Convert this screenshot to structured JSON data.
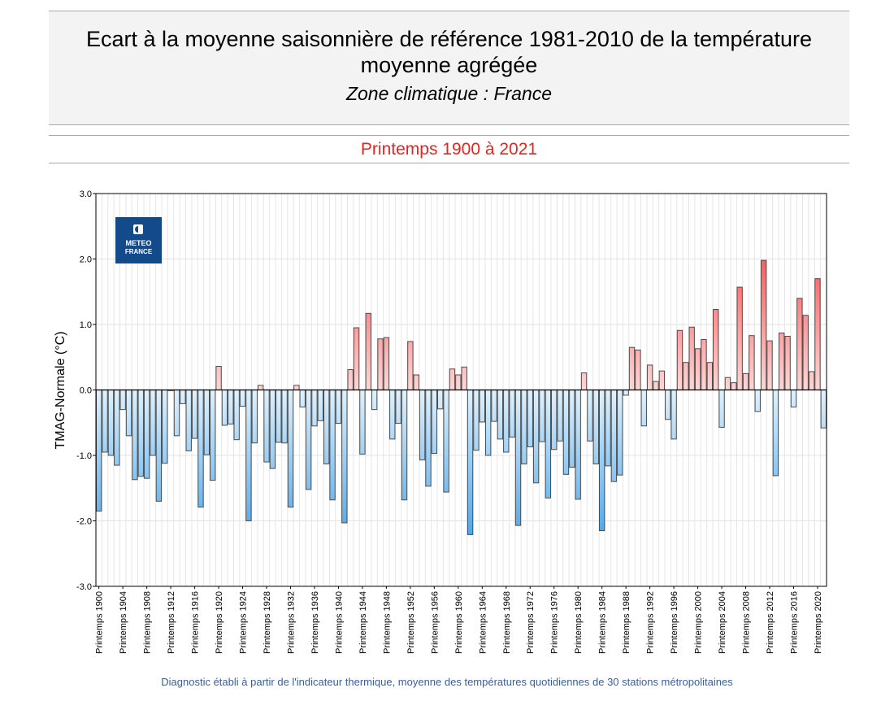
{
  "header": {
    "title": "Ecart à la moyenne saisonnière  de référence 1981-2010  de la température moyenne  agrégée",
    "subtitle": "Zone climatique : France",
    "season": "Printemps 1900 à 2021"
  },
  "logo": {
    "line1": "METEO",
    "line2": "FRANCE"
  },
  "footer": "Diagnostic établi à partir de l'indicateur thermique, moyenne des températures quotidiennes de 30 stations métropolitaines",
  "colors": {
    "positive": "#f03030",
    "negative": "#2a97e6",
    "season": "#e8231f",
    "footer": "#3b5d99",
    "logo": "#134a8a"
  },
  "chart_data": {
    "type": "bar",
    "title": "Printemps 1900 à 2021",
    "xlabel": "",
    "ylabel": "TMAG-Normale (°C)",
    "ylim": [
      -3.0,
      3.0
    ],
    "y_ticks": [
      "3.0",
      "2.0",
      "1.0",
      "0.0",
      "-1.0",
      "-2.0",
      "-3.0"
    ],
    "y_tick_values": [
      3,
      2,
      1,
      0,
      -1,
      -2,
      -3
    ],
    "grid": true,
    "x_start_year": 1900,
    "category_prefix": "Printemps",
    "tick_labels": [
      "Printemps 1900",
      "Printemps 1904",
      "Printemps 1908",
      "Printemps 1912",
      "Printemps 1916",
      "Printemps 1920",
      "Printemps 1924",
      "Printemps 1928",
      "Printemps 1932",
      "Printemps 1936",
      "Printemps 1940",
      "Printemps 1944",
      "Printemps 1948",
      "Printemps 1952",
      "Printemps 1956",
      "Printemps 1960",
      "Printemps 1964",
      "Printemps 1968",
      "Printemps 1972",
      "Printemps 1976",
      "Printemps 1980",
      "Printemps 1984",
      "Printemps 1988",
      "Printemps 1992",
      "Printemps 1996",
      "Printemps 2000",
      "Printemps 2004",
      "Printemps 2008",
      "Printemps 2012",
      "Printemps 2016",
      "Printemps 2020"
    ],
    "values": [
      -1.85,
      -0.95,
      -1.0,
      -1.15,
      -0.3,
      -0.7,
      -1.37,
      -1.32,
      -1.35,
      -1.0,
      -1.7,
      -1.12,
      -0.01,
      -0.7,
      -0.21,
      -0.93,
      -0.74,
      -1.79,
      -0.99,
      -1.38,
      0.36,
      -0.54,
      -0.52,
      -0.76,
      -0.25,
      -2.0,
      -0.81,
      0.07,
      -1.1,
      -1.2,
      -0.8,
      -0.81,
      -1.79,
      0.07,
      -0.26,
      -1.52,
      -0.55,
      -0.47,
      -1.13,
      -1.68,
      -0.51,
      -2.03,
      0.31,
      0.95,
      -0.98,
      1.17,
      -0.3,
      0.78,
      0.8,
      -0.75,
      -0.51,
      -1.68,
      0.74,
      0.23,
      -1.07,
      -1.47,
      -0.97,
      -0.29,
      -1.56,
      0.32,
      0.23,
      0.35,
      -2.21,
      -0.92,
      -0.49,
      -1.0,
      -0.48,
      -0.75,
      -0.95,
      -0.72,
      -2.07,
      -1.13,
      -0.87,
      -1.42,
      -0.79,
      -1.65,
      -0.91,
      -0.78,
      -1.29,
      -1.18,
      -1.67,
      0.26,
      -0.78,
      -1.13,
      -2.15,
      -1.16,
      -1.4,
      -1.3,
      -0.08,
      0.65,
      0.61,
      -0.55,
      0.38,
      0.13,
      0.29,
      -0.45,
      -0.75,
      0.91,
      0.42,
      0.96,
      0.63,
      0.77,
      0.42,
      1.23,
      -0.57,
      0.19,
      0.11,
      1.57,
      0.25,
      0.83,
      -0.33,
      1.98,
      0.75,
      -1.31,
      0.87,
      0.82,
      -0.26,
      1.4,
      1.14,
      0.28,
      1.7,
      -0.58
    ]
  }
}
